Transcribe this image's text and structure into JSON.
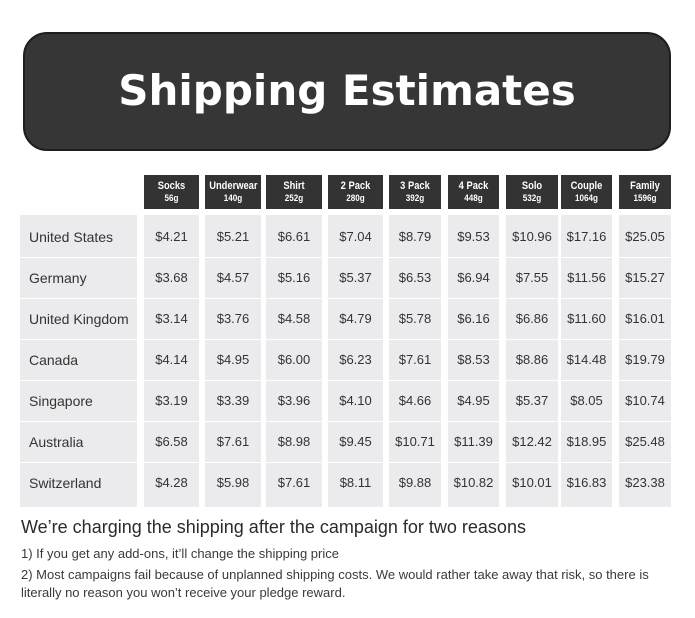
{
  "title": "Shipping Estimates",
  "columns": [
    {
      "name": "Socks",
      "weight": "56g"
    },
    {
      "name": "Underwear",
      "weight": "140g"
    },
    {
      "name": "Shirt",
      "weight": "252g"
    },
    {
      "name": "2 Pack",
      "weight": "280g"
    },
    {
      "name": "3 Pack",
      "weight": "392g"
    },
    {
      "name": "4 Pack",
      "weight": "448g"
    },
    {
      "name": "Solo",
      "weight": "532g"
    },
    {
      "name": "Couple",
      "weight": "1064g"
    },
    {
      "name": "Family",
      "weight": "1596g"
    }
  ],
  "rows": [
    {
      "country": "United States",
      "prices": [
        "$4.21",
        "$5.21",
        "$6.61",
        "$7.04",
        "$8.79",
        "$9.53",
        "$10.96",
        "$17.16",
        "$25.05"
      ]
    },
    {
      "country": "Germany",
      "prices": [
        "$3.68",
        "$4.57",
        "$5.16",
        "$5.37",
        "$6.53",
        "$6.94",
        "$7.55",
        "$11.56",
        "$15.27"
      ]
    },
    {
      "country": "United Kingdom",
      "prices": [
        "$3.14",
        "$3.76",
        "$4.58",
        "$4.79",
        "$5.78",
        "$6.16",
        "$6.86",
        "$11.60",
        "$16.01"
      ]
    },
    {
      "country": "Canada",
      "prices": [
        "$4.14",
        "$4.95",
        "$6.00",
        "$6.23",
        "$7.61",
        "$8.53",
        "$8.86",
        "$14.48",
        "$19.79"
      ]
    },
    {
      "country": "Singapore",
      "prices": [
        "$3.19",
        "$3.39",
        "$3.96",
        "$4.10",
        "$4.66",
        "$4.95",
        "$5.37",
        "$8.05",
        "$10.74"
      ]
    },
    {
      "country": "Australia",
      "prices": [
        "$6.58",
        "$7.61",
        "$8.98",
        "$9.45",
        "$10.71",
        "$11.39",
        "$12.42",
        "$18.95",
        "$25.48"
      ]
    },
    {
      "country": "Switzerland",
      "prices": [
        "$4.28",
        "$5.98",
        "$7.61",
        "$8.11",
        "$9.88",
        "$10.82",
        "$10.01",
        "$16.83",
        "$23.38"
      ]
    }
  ],
  "notes": {
    "heading": "We’re charging the shipping after the campaign for two reasons",
    "lines": [
      "1) If you get any add-ons, it’ll change the shipping price",
      "2) Most campaigns fail because of unplanned shipping costs. We would rather take away that risk, so there is literally no reason you won’t receive your pledge reward."
    ]
  },
  "colors": {
    "banner": "#363636",
    "header": "#333333",
    "cell_bg": "#ebebed"
  }
}
